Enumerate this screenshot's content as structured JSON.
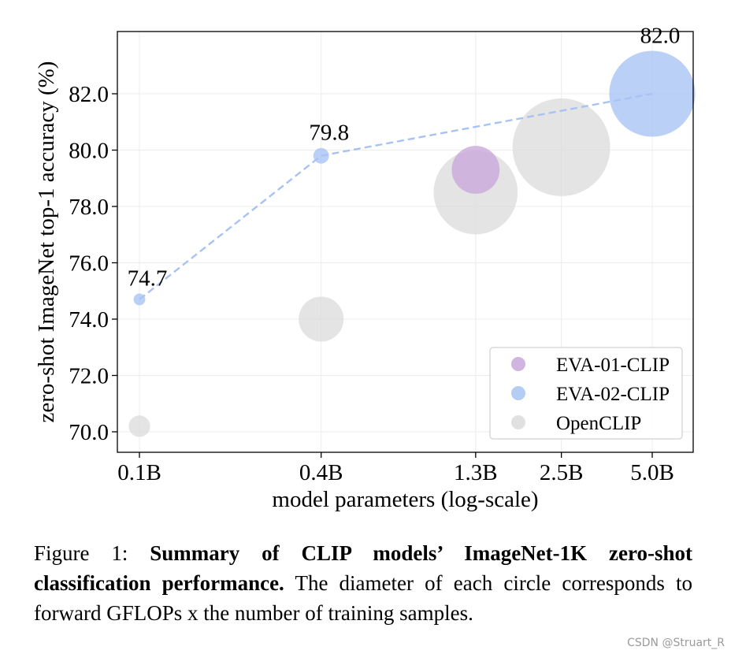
{
  "chart_data": {
    "type": "scatter",
    "title": "",
    "xlabel": "model parameters (log-scale)",
    "ylabel": "zero-shot ImageNet top-1 accuracy (%)",
    "x_scale": "log",
    "x_ticks": [
      0.1,
      0.4,
      1.3,
      2.5,
      5.0
    ],
    "x_tick_labels": [
      "0.1B",
      "0.4B",
      "1.3B",
      "2.5B",
      "5.0B"
    ],
    "y_ticks": [
      70,
      72,
      74,
      76,
      78,
      80,
      82
    ],
    "y_tick_labels": [
      "70.0",
      "72.0",
      "74.0",
      "76.0",
      "78.0",
      "80.0",
      "82.0"
    ],
    "ylim": [
      69.5,
      84.2
    ],
    "grid": true,
    "legend_position": "bottom-right",
    "colors": {
      "EVA-01-CLIP": "#c9a8dc",
      "EVA-02-CLIP": "#a8c3f3",
      "OpenCLIP": "#dcdcdc",
      "trend_line": "#a8c3f3"
    },
    "series": [
      {
        "name": "EVA-01-CLIP",
        "points": [
          {
            "x": 1.3,
            "y": 79.3,
            "bubble": 0.49
          }
        ]
      },
      {
        "name": "EVA-02-CLIP",
        "connected": true,
        "points": [
          {
            "x": 0.1,
            "y": 74.7,
            "bubble": 0.12,
            "label": "74.7"
          },
          {
            "x": 0.4,
            "y": 79.8,
            "bubble": 0.16,
            "label": "79.8"
          },
          {
            "x": 5.0,
            "y": 82.0,
            "bubble": 0.88,
            "label": "82.0"
          }
        ]
      },
      {
        "name": "OpenCLIP",
        "points": [
          {
            "x": 0.1,
            "y": 70.2,
            "bubble": 0.22
          },
          {
            "x": 0.4,
            "y": 74.0,
            "bubble": 0.46
          },
          {
            "x": 1.3,
            "y": 78.5,
            "bubble": 0.86
          },
          {
            "x": 2.5,
            "y": 80.1,
            "bubble": 1.0
          }
        ]
      }
    ],
    "legend": [
      "EVA-01-CLIP",
      "EVA-02-CLIP",
      "OpenCLIP"
    ]
  },
  "caption": {
    "prefix": "Figure 1: ",
    "bold": "Summary of CLIP models’ ImageNet-1K zero-shot classification performance.",
    "rest": "  The diameter of each circle corresponds to forward GFLOPs x the number of training samples."
  },
  "watermark": "CSDN @Struart_R"
}
